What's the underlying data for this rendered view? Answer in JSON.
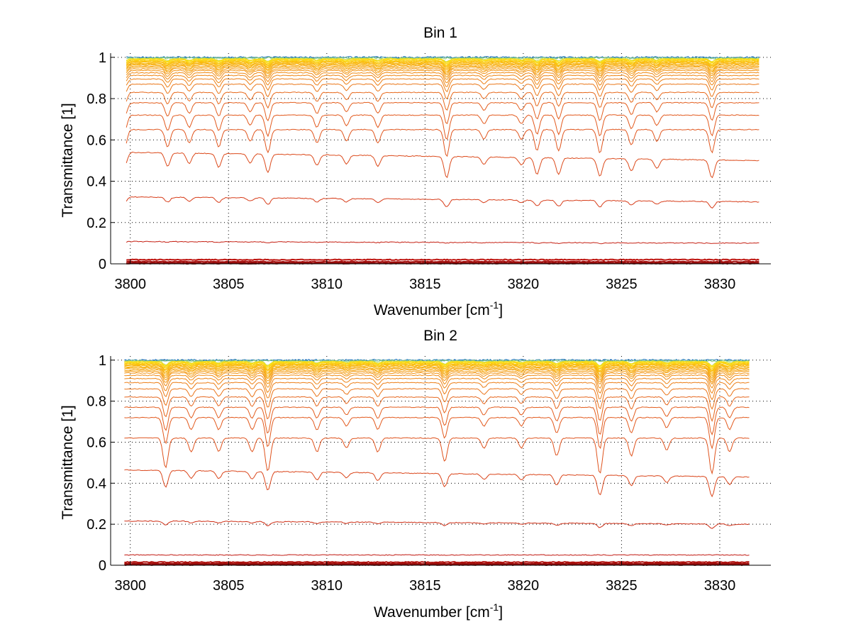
{
  "chart_data": [
    {
      "type": "line",
      "title": "Bin 1",
      "xlabel": "Wavenumber [cm",
      "xlabel_superscript": "-1",
      "xlabel_suffix": "]",
      "ylabel": "Transmittance [1]",
      "xlim": [
        3799,
        3832.6
      ],
      "ylim": [
        0,
        1.02
      ],
      "xticks": [
        3800,
        3805,
        3810,
        3815,
        3820,
        3825,
        3830
      ],
      "xtick_labels": [
        "3800",
        "3805",
        "3810",
        "3815",
        "3820",
        "3825",
        "3830"
      ],
      "yticks": [
        0,
        0.2,
        0.4,
        0.6,
        0.8,
        1
      ],
      "ytick_labels": [
        "0",
        "0.2",
        "0.4",
        "0.6",
        "0.8",
        "1"
      ],
      "grid": true,
      "x_range_data": [
        3799.8,
        3832.0
      ],
      "absorption_lines": [
        {
          "x": 3799.7,
          "depth": 0.5
        },
        {
          "x": 3801.9,
          "depth": 0.45
        },
        {
          "x": 3803.0,
          "depth": 0.35
        },
        {
          "x": 3804.5,
          "depth": 0.45
        },
        {
          "x": 3806.1,
          "depth": 0.3
        },
        {
          "x": 3807.0,
          "depth": 0.6
        },
        {
          "x": 3809.5,
          "depth": 0.35
        },
        {
          "x": 3811.0,
          "depth": 0.3
        },
        {
          "x": 3812.6,
          "depth": 0.35
        },
        {
          "x": 3816.1,
          "depth": 0.7
        },
        {
          "x": 3818.0,
          "depth": 0.25
        },
        {
          "x": 3819.9,
          "depth": 0.25
        },
        {
          "x": 3820.7,
          "depth": 0.55
        },
        {
          "x": 3821.8,
          "depth": 0.55
        },
        {
          "x": 3823.9,
          "depth": 0.6
        },
        {
          "x": 3825.5,
          "depth": 0.4
        },
        {
          "x": 3826.8,
          "depth": 0.3
        },
        {
          "x": 3829.6,
          "depth": 0.6
        }
      ],
      "series_baselines": [
        1.0,
        0.998,
        0.996,
        0.994,
        0.992,
        0.99,
        0.987,
        0.984,
        0.981,
        0.978,
        0.975,
        0.971,
        0.967,
        0.962,
        0.957,
        0.951,
        0.944,
        0.936,
        0.925,
        0.912,
        0.895,
        0.87,
        0.83,
        0.78,
        0.72,
        0.65,
        0.5,
        0.3,
        0.1,
        0.02,
        0.01,
        0.004,
        0.002
      ],
      "notes": "Family of transmittance spectra; colors range from blue/cyan (near 1.0) through yellow and orange to dark red (near 0)."
    },
    {
      "type": "line",
      "title": "Bin 2",
      "xlabel": "Wavenumber [cm",
      "xlabel_superscript": "-1",
      "xlabel_suffix": "]",
      "ylabel": "Transmittance [1]",
      "xlim": [
        3799,
        3832.6
      ],
      "ylim": [
        0,
        1.02
      ],
      "xticks": [
        3800,
        3805,
        3810,
        3815,
        3820,
        3825,
        3830
      ],
      "xtick_labels": [
        "3800",
        "3805",
        "3810",
        "3815",
        "3820",
        "3825",
        "3830"
      ],
      "yticks": [
        0,
        0.2,
        0.4,
        0.6,
        0.8,
        1
      ],
      "ytick_labels": [
        "0",
        "0.2",
        "0.4",
        "0.6",
        "0.8",
        "1"
      ],
      "grid": true,
      "x_range_data": [
        3799.7,
        3831.5
      ],
      "absorption_lines": [
        {
          "x": 3801.8,
          "depth": 0.75
        },
        {
          "x": 3803.1,
          "depth": 0.35
        },
        {
          "x": 3804.5,
          "depth": 0.35
        },
        {
          "x": 3806.2,
          "depth": 0.35
        },
        {
          "x": 3807.0,
          "depth": 0.85
        },
        {
          "x": 3809.5,
          "depth": 0.35
        },
        {
          "x": 3811.0,
          "depth": 0.25
        },
        {
          "x": 3812.6,
          "depth": 0.35
        },
        {
          "x": 3816.0,
          "depth": 0.6
        },
        {
          "x": 3818.0,
          "depth": 0.25
        },
        {
          "x": 3819.9,
          "depth": 0.25
        },
        {
          "x": 3821.7,
          "depth": 0.45
        },
        {
          "x": 3823.9,
          "depth": 0.9
        },
        {
          "x": 3825.5,
          "depth": 0.45
        },
        {
          "x": 3827.3,
          "depth": 0.3
        },
        {
          "x": 3829.6,
          "depth": 0.9
        },
        {
          "x": 3830.5,
          "depth": 0.35
        }
      ],
      "series_baselines": [
        1.0,
        0.998,
        0.996,
        0.994,
        0.992,
        0.99,
        0.988,
        0.985,
        0.982,
        0.979,
        0.976,
        0.972,
        0.968,
        0.963,
        0.958,
        0.952,
        0.945,
        0.937,
        0.926,
        0.91,
        0.89,
        0.86,
        0.82,
        0.77,
        0.72,
        0.62,
        0.43,
        0.2,
        0.05,
        0.015,
        0.008,
        0.004,
        0.002
      ],
      "notes": "Family of transmittance spectra; colors range from blue/cyan (near 1.0) through yellow and orange to dark red (near 0)."
    }
  ]
}
